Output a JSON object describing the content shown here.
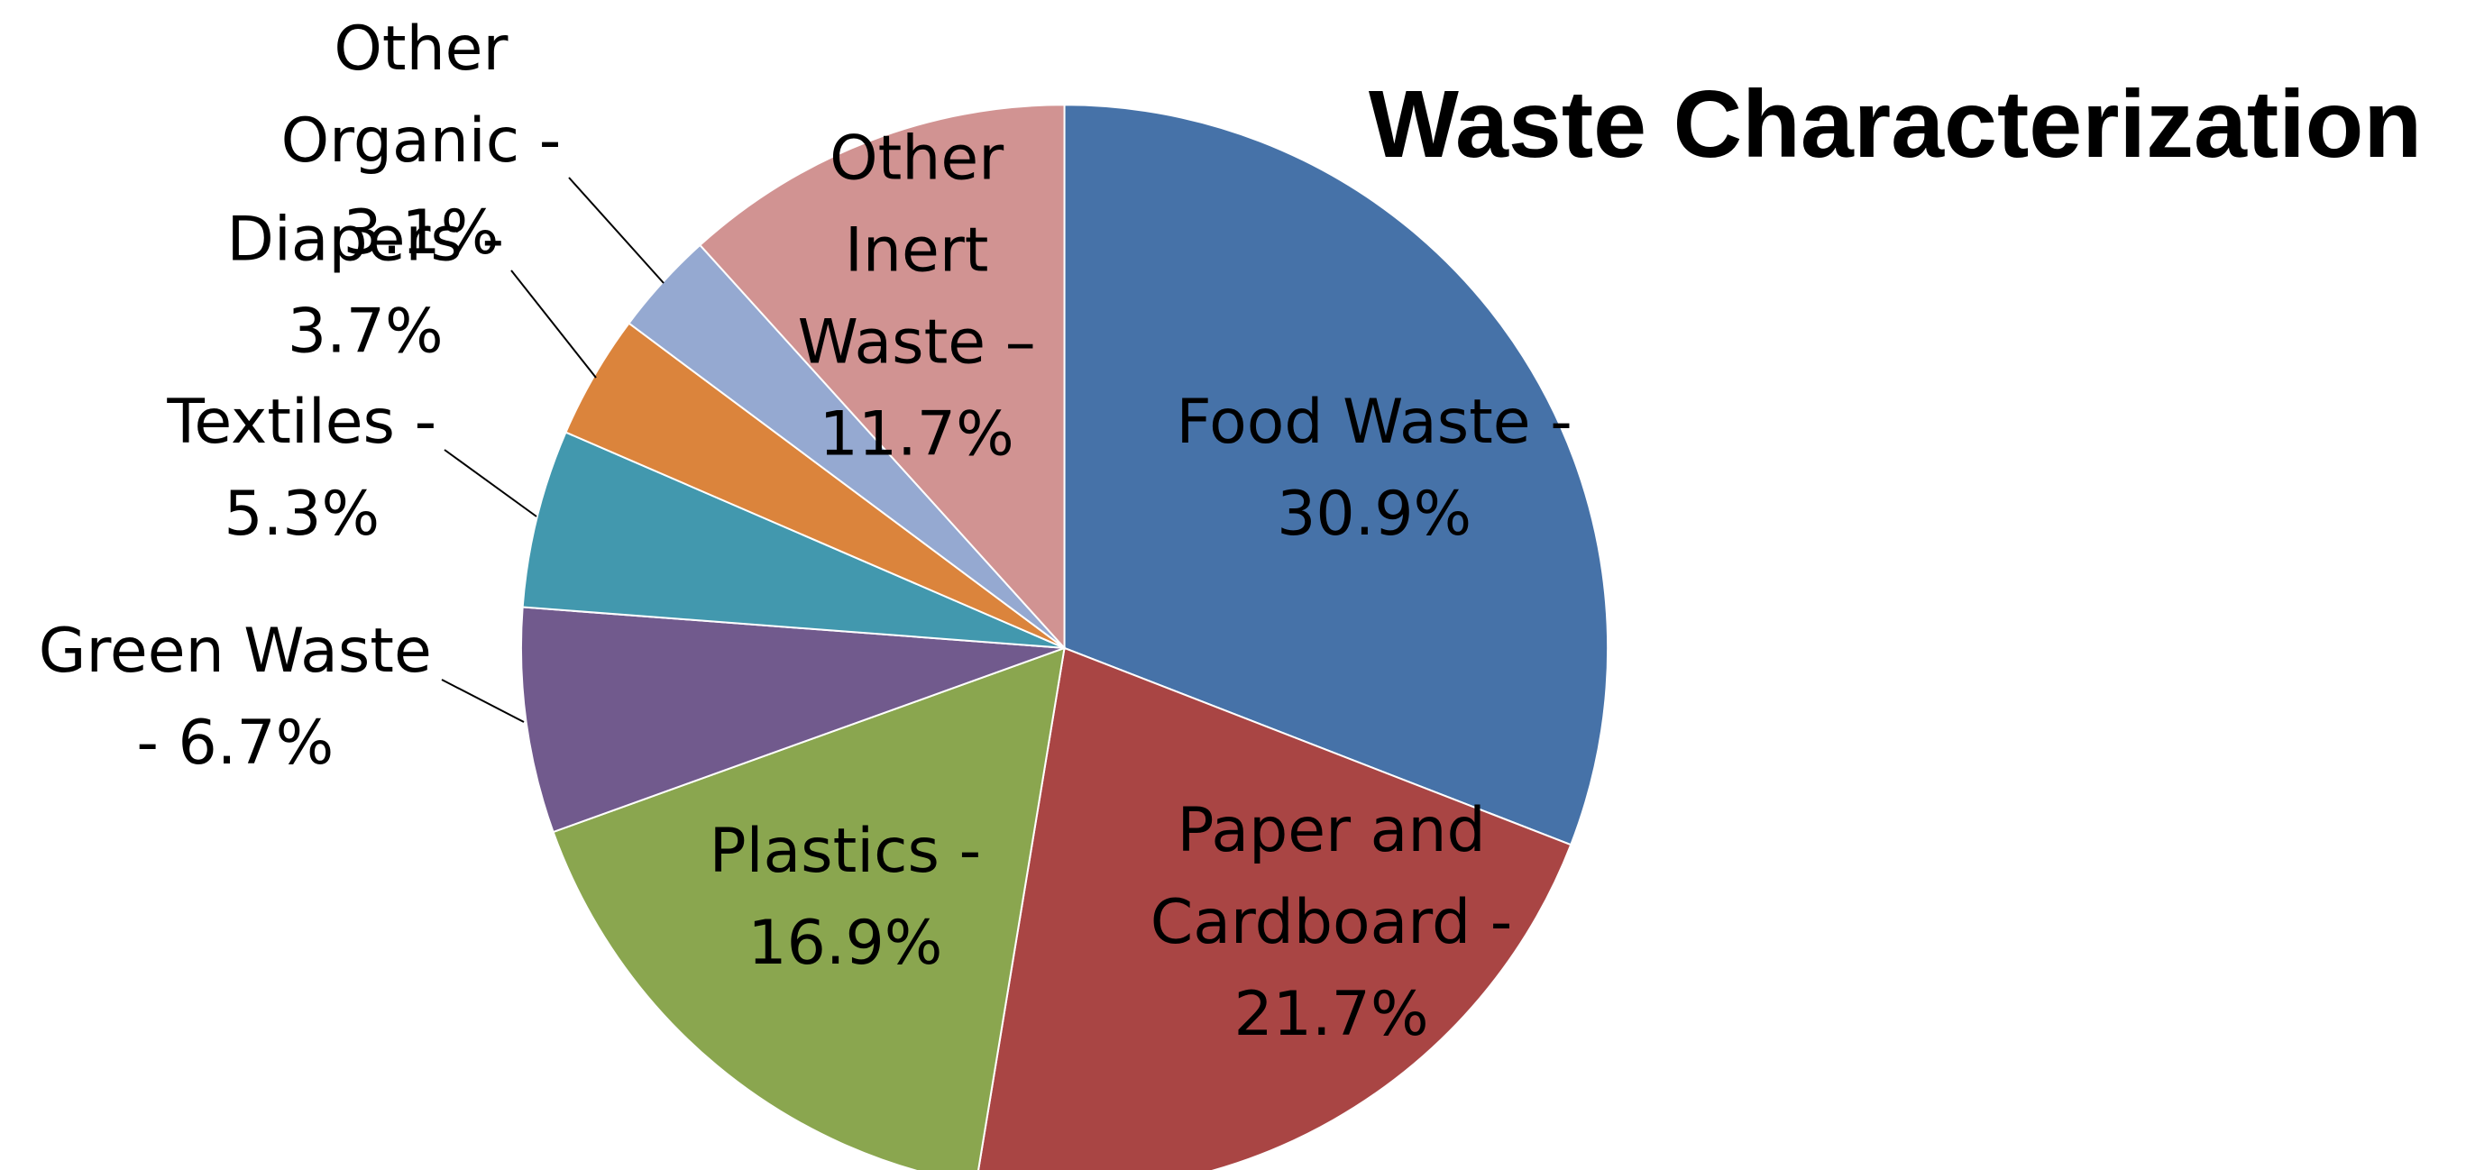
{
  "chart_data": {
    "type": "pie",
    "title": "Waste Characterization",
    "categories": [
      "Food Waste - 30.9%",
      "Paper and Cardboard - 21.7%",
      "Plastics - 16.9%",
      "Green Waste - 6.7%",
      "Textiles - 5.3%",
      "Diapers - 3.7%",
      "Other Organic - 3.1%",
      "Other Inert Waste – 11.7%"
    ],
    "values": [
      30.9,
      21.7,
      16.9,
      6.7,
      5.3,
      3.7,
      3.1,
      11.7
    ],
    "colors": [
      "#4672a8",
      "#a94544",
      "#8aa64f",
      "#715a8d",
      "#4298ae",
      "#db843c",
      "#95a9d1",
      "#d19392"
    ]
  }
}
